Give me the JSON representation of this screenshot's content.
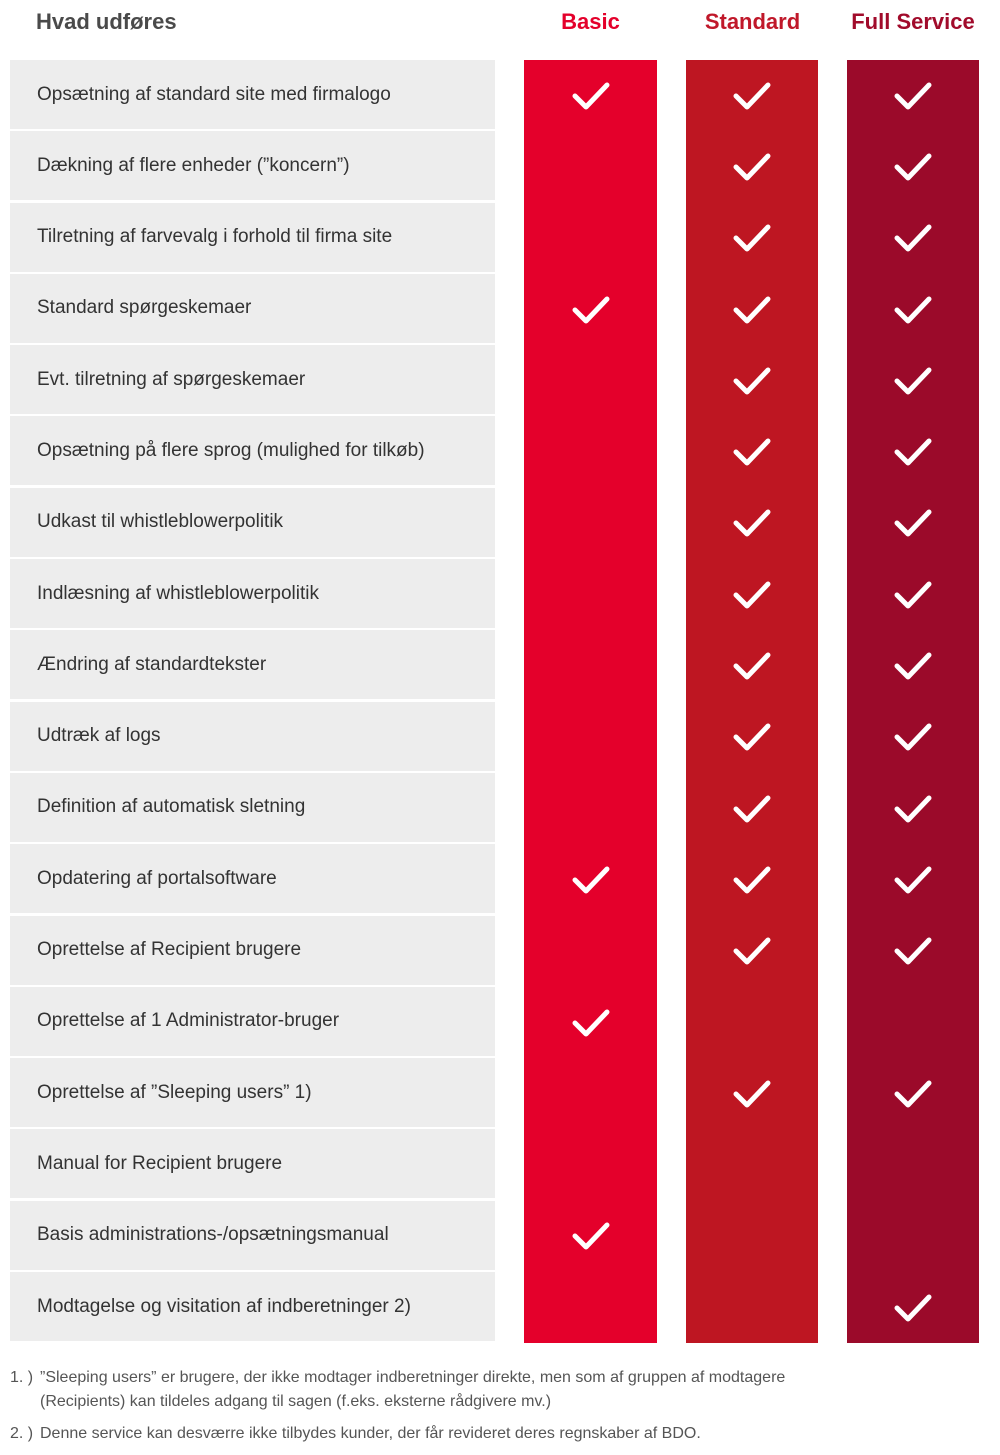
{
  "header": {
    "feature_label": "Hvad udføres",
    "plans": [
      "Basic",
      "Standard",
      "Full Service"
    ]
  },
  "colors": {
    "basic": "#e4002b",
    "standard": "#be1622",
    "full_service": "#9b0a2a",
    "feature_bg": "#ededed"
  },
  "check_icon": "checkmark-icon",
  "rows": [
    {
      "label": "Opsætning af standard site med firmalogo",
      "basic": true,
      "standard": true,
      "full": true
    },
    {
      "label": "Dækning af flere enheder (”koncern”)",
      "basic": false,
      "standard": true,
      "full": true
    },
    {
      "label": "Tilretning af farvevalg i forhold til firma site",
      "basic": false,
      "standard": true,
      "full": true
    },
    {
      "label": "Standard spørgeskemaer",
      "basic": true,
      "standard": true,
      "full": true
    },
    {
      "label": "Evt. tilretning af spørgeskemaer",
      "basic": false,
      "standard": true,
      "full": true
    },
    {
      "label": "Opsætning på flere sprog (mulighed for tilkøb)",
      "basic": false,
      "standard": true,
      "full": true
    },
    {
      "label": "Udkast til whistleblowerpolitik",
      "basic": false,
      "standard": true,
      "full": true
    },
    {
      "label": "Indlæsning af whistleblowerpolitik",
      "basic": false,
      "standard": true,
      "full": true
    },
    {
      "label": "Ændring af standardtekster",
      "basic": false,
      "standard": true,
      "full": true
    },
    {
      "label": "Udtræk af logs",
      "basic": false,
      "standard": true,
      "full": true
    },
    {
      "label": "Definition af automatisk sletning",
      "basic": false,
      "standard": true,
      "full": true
    },
    {
      "label": "Opdatering af portalsoftware",
      "basic": true,
      "standard": true,
      "full": true
    },
    {
      "label": "Oprettelse af Recipient brugere",
      "basic": false,
      "standard": true,
      "full": true
    },
    {
      "label": "Oprettelse af 1 Administrator-bruger",
      "basic": true,
      "standard": false,
      "full": false
    },
    {
      "label": "Oprettelse af ”Sleeping users” 1)",
      "basic": false,
      "standard": true,
      "full": true
    },
    {
      "label": "Manual for Recipient brugere",
      "basic": false,
      "standard": false,
      "full": false
    },
    {
      "label": "Basis administrations-/opsætningsmanual",
      "basic": true,
      "standard": false,
      "full": false
    },
    {
      "label": "Modtagelse og visitation af indberetninger 2)",
      "basic": false,
      "standard": false,
      "full": true
    }
  ],
  "footnotes": [
    {
      "num": "1. )",
      "text": "”Sleeping users” er brugere, der ikke modtager indberetninger direkte, men som af gruppen af modtagere (Recipients) kan tildeles adgang til sagen (f.eks. eksterne rådgivere mv.)"
    },
    {
      "num": "2. )",
      "text": "Denne service kan desværre ikke tilbydes kunder, der får revideret deres regnskaber af BDO."
    }
  ]
}
